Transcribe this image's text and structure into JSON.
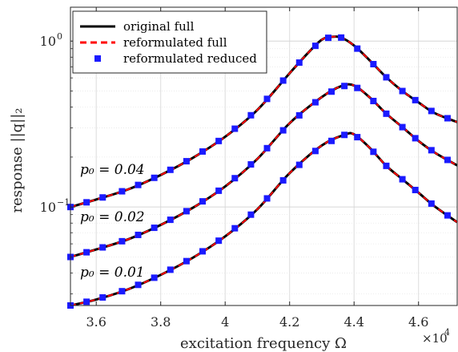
{
  "chart_data": {
    "type": "line",
    "title": "",
    "xlabel": "excitation frequency Ω",
    "ylabel": "response ||q||₂",
    "x_exponent_label": "×10",
    "x_exponent_power": "4",
    "x_scale": "linear",
    "y_scale": "log",
    "xlim": [
      35200,
      47200
    ],
    "ylim": [
      0.0255,
      1.6
    ],
    "grid": true,
    "minor_grid_y": true,
    "x_ticks": [
      36000,
      38000,
      40000,
      42000,
      44000,
      46000
    ],
    "x_tick_labels": [
      "3.6",
      "3.8",
      "4",
      "4.2",
      "4.4",
      "4.6"
    ],
    "y_ticks": [
      {
        "value": 0.1,
        "base": "10",
        "exp": "−1"
      },
      {
        "value": 1,
        "base": "10",
        "exp": "0"
      }
    ],
    "legend": {
      "position": "top-left",
      "entries": [
        {
          "label": "original full",
          "style": "solid-line",
          "color": "#000000"
        },
        {
          "label": "reformulated full",
          "style": "dashed-line",
          "color": "#ff0000"
        },
        {
          "label": "reformulated reduced",
          "style": "square-marker",
          "color": "#1a1aff"
        }
      ]
    },
    "annotations": [
      {
        "text": "p₀ = 0.04",
        "series": "p0 = 0.04"
      },
      {
        "text": "p₀ = 0.02",
        "series": "p0 = 0.02"
      },
      {
        "text": "p₀ = 0.01",
        "series": "p0 = 0.01"
      }
    ],
    "series": [
      {
        "id": "p04",
        "key_points": [
          [
            35200,
            0.1
          ],
          [
            36000,
            0.111
          ],
          [
            37000,
            0.128
          ],
          [
            38000,
            0.156
          ],
          [
            39000,
            0.198
          ],
          [
            40000,
            0.265
          ],
          [
            41000,
            0.385
          ],
          [
            42000,
            0.64
          ],
          [
            42600,
            0.86
          ],
          [
            43000,
            1.02
          ],
          [
            43300,
            1.06
          ],
          [
            43600,
            1.05
          ],
          [
            44000,
            0.94
          ],
          [
            44500,
            0.76
          ],
          [
            45000,
            0.605
          ],
          [
            45500,
            0.5
          ],
          [
            46000,
            0.427
          ],
          [
            46500,
            0.368
          ],
          [
            47200,
            0.325
          ]
        ],
        "markers_x": [
          35200,
          35700,
          36200,
          36800,
          37300,
          37800,
          38300,
          38800,
          39300,
          39800,
          40300,
          40800,
          41300,
          41800,
          42300,
          42800,
          43200,
          43600,
          44100,
          44600,
          45000,
          45500,
          45900,
          46400,
          46900
        ]
      },
      {
        "id": "p02",
        "key_points": [
          [
            35200,
            0.05
          ],
          [
            36000,
            0.0555
          ],
          [
            37000,
            0.064
          ],
          [
            38000,
            0.078
          ],
          [
            39000,
            0.099
          ],
          [
            40000,
            0.133
          ],
          [
            41000,
            0.195
          ],
          [
            42000,
            0.32
          ],
          [
            43000,
            0.46
          ],
          [
            43600,
            0.535
          ],
          [
            44000,
            0.54
          ],
          [
            44500,
            0.455
          ],
          [
            45000,
            0.365
          ],
          [
            45500,
            0.303
          ],
          [
            46000,
            0.25
          ],
          [
            46500,
            0.213
          ],
          [
            47200,
            0.178
          ]
        ],
        "markers_x": [
          35200,
          35700,
          36200,
          36800,
          37300,
          37800,
          38300,
          38800,
          39300,
          39800,
          40300,
          40800,
          41300,
          41800,
          42300,
          42800,
          43300,
          43700,
          44100,
          44600,
          45000,
          45500,
          45900,
          46400,
          46900
        ]
      },
      {
        "id": "p01",
        "key_points": [
          [
            35200,
            0.0255
          ],
          [
            36000,
            0.0277
          ],
          [
            37000,
            0.032
          ],
          [
            38000,
            0.039
          ],
          [
            39000,
            0.0495
          ],
          [
            40000,
            0.0665
          ],
          [
            41000,
            0.097
          ],
          [
            42000,
            0.16
          ],
          [
            43000,
            0.235
          ],
          [
            43700,
            0.272
          ],
          [
            44000,
            0.274
          ],
          [
            44500,
            0.226
          ],
          [
            45000,
            0.177
          ],
          [
            45500,
            0.147
          ],
          [
            46000,
            0.122
          ],
          [
            46500,
            0.101
          ],
          [
            47200,
            0.081
          ]
        ],
        "markers_x": [
          35200,
          35700,
          36200,
          36800,
          37300,
          37800,
          38300,
          38800,
          39300,
          39800,
          40300,
          40800,
          41300,
          41800,
          42300,
          42800,
          43300,
          43700,
          44100,
          44600,
          45000,
          45500,
          45900,
          46400,
          46900
        ]
      }
    ]
  }
}
